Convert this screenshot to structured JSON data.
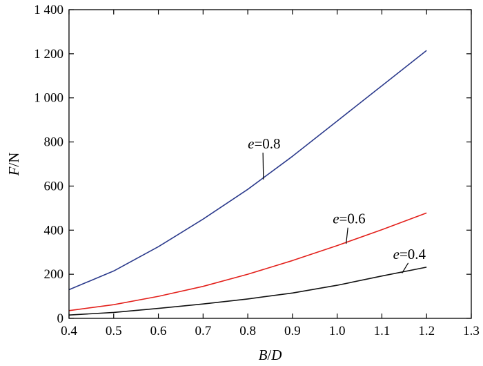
{
  "chart_data": {
    "type": "line",
    "title": "",
    "xlabel": {
      "var": "B",
      "sep": "/",
      "unit": "D"
    },
    "ylabel": {
      "var": "F",
      "sep": "/",
      "unit": "N"
    },
    "xlim": [
      0.4,
      1.3
    ],
    "ylim": [
      0,
      1400
    ],
    "xticks": [
      0.4,
      0.5,
      0.6,
      0.7,
      0.8,
      0.9,
      1.0,
      1.1,
      1.2,
      1.3
    ],
    "xtick_labels": [
      "0.4",
      "0.5",
      "0.6",
      "0.7",
      "0.8",
      "0.9",
      "1.0",
      "1.1",
      "1.2",
      "1.3"
    ],
    "yticks": [
      0,
      200,
      400,
      600,
      800,
      1000,
      1200,
      1400
    ],
    "ytick_labels": [
      "0",
      "200",
      "400",
      "600",
      "800",
      "1 000",
      "1 200",
      "1 400"
    ],
    "grid": false,
    "x": [
      0.4,
      0.5,
      0.6,
      0.7,
      0.8,
      0.9,
      1.0,
      1.1,
      1.2
    ],
    "series": [
      {
        "name": "e=0.8",
        "label_var": "e",
        "label_value": "=0.8",
        "color": "#2b3a8c",
        "values": [
          130,
          215,
          325,
          450,
          585,
          735,
          895,
          1055,
          1215
        ],
        "label_at": {
          "x": 0.8,
          "y": 770
        },
        "pointer_to": {
          "x": 0.835,
          "y": 630
        }
      },
      {
        "name": "e=0.6",
        "label_var": "e",
        "label_value": "=0.6",
        "color": "#e3201b",
        "values": [
          35,
          62,
          100,
          145,
          200,
          262,
          330,
          402,
          478
        ],
        "label_at": {
          "x": 0.99,
          "y": 430
        },
        "pointer_to": {
          "x": 1.02,
          "y": 338
        }
      },
      {
        "name": "e=0.4",
        "label_var": "e",
        "label_value": "=0.4",
        "color": "#111111",
        "values": [
          15,
          27,
          45,
          65,
          88,
          115,
          150,
          192,
          232
        ],
        "label_at": {
          "x": 1.125,
          "y": 270
        },
        "pointer_to": {
          "x": 1.145,
          "y": 205
        }
      }
    ]
  }
}
